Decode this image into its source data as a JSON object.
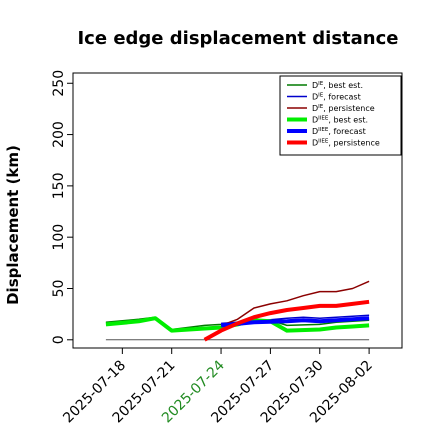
{
  "chart_data": {
    "type": "line",
    "title": "Ice edge displacement distance",
    "ylabel": "Displacement (km)",
    "xlabel": "",
    "ylim": [
      -8,
      260
    ],
    "xlim": [
      "2025-07-15",
      "2025-08-04"
    ],
    "yticks": [
      0,
      50,
      100,
      150,
      200,
      250
    ],
    "xticks": [
      {
        "date": "2025-07-18",
        "label": "2025-07-18",
        "color": "#000000"
      },
      {
        "date": "2025-07-21",
        "label": "2025-07-21",
        "color": "#000000"
      },
      {
        "date": "2025-07-24",
        "label": "2025-07-24",
        "color": "#228B22"
      },
      {
        "date": "2025-07-27",
        "label": "2025-07-27",
        "color": "#000000"
      },
      {
        "date": "2025-07-30",
        "label": "2025-07-30",
        "color": "#000000"
      },
      {
        "date": "2025-08-02",
        "label": "2025-08-02",
        "color": "#000000"
      }
    ],
    "zero_line": true,
    "legend_position": "top-right",
    "series": [
      {
        "name": "DIE, best est.",
        "name_base": "D",
        "name_sup": "IE",
        "name_rest": ", best est.",
        "color": "#007A00",
        "width": 1.5,
        "x": [
          "2025-07-17",
          "2025-07-19",
          "2025-07-20",
          "2025-07-21",
          "2025-07-23",
          "2025-07-24",
          "2025-07-25",
          "2025-07-26",
          "2025-07-27",
          "2025-07-28",
          "2025-07-30",
          "2025-07-31",
          "2025-08-01",
          "2025-08-02"
        ],
        "y": [
          17,
          20,
          22,
          10,
          14,
          15,
          17,
          18,
          19,
          14,
          15,
          17,
          18,
          19
        ]
      },
      {
        "name": "DIE, forecast",
        "name_base": "D",
        "name_sup": "IE",
        "name_rest": ", forecast",
        "color": "#0000CC",
        "width": 1.5,
        "x": [
          "2025-07-24",
          "2025-07-26",
          "2025-07-28",
          "2025-07-29",
          "2025-07-30",
          "2025-07-31",
          "2025-08-02"
        ],
        "y": [
          16,
          18,
          21,
          22,
          21,
          22,
          24
        ]
      },
      {
        "name": "DIE, persistence",
        "name_base": "D",
        "name_sup": "IE",
        "name_rest": ", persistence",
        "color": "#8B0000",
        "width": 1.5,
        "x": [
          "2025-07-24",
          "2025-07-25",
          "2025-07-26",
          "2025-07-27",
          "2025-07-28",
          "2025-07-29",
          "2025-07-30",
          "2025-07-31",
          "2025-08-01",
          "2025-08-02"
        ],
        "y": [
          14,
          20,
          31,
          35,
          38,
          43,
          47,
          47,
          50,
          57
        ]
      },
      {
        "name": "DIIEE, best est.",
        "name_base": "D",
        "name_sup": "IIEE",
        "name_rest": ", best est.",
        "color": "#00EE00",
        "width": 4,
        "x": [
          "2025-07-17",
          "2025-07-19",
          "2025-07-20",
          "2025-07-21",
          "2025-07-23",
          "2025-07-24",
          "2025-07-25",
          "2025-07-26",
          "2025-07-27",
          "2025-07-28",
          "2025-07-30",
          "2025-07-31",
          "2025-08-01",
          "2025-08-02"
        ],
        "y": [
          15,
          18,
          21,
          9,
          11,
          12,
          15,
          19,
          18,
          9,
          10,
          12,
          13,
          14
        ]
      },
      {
        "name": "DIIEE, forecast",
        "name_base": "D",
        "name_sup": "IIEE",
        "name_rest": ", forecast",
        "color": "#0000FF",
        "width": 4,
        "x": [
          "2025-07-24",
          "2025-07-26",
          "2025-07-28",
          "2025-07-29",
          "2025-07-30",
          "2025-07-31",
          "2025-08-02"
        ],
        "y": [
          14,
          17,
          18,
          19,
          18,
          19,
          21
        ]
      },
      {
        "name": "DIIEE, persistence",
        "name_base": "D",
        "name_sup": "IIEE",
        "name_rest": ", persistence",
        "color": "#FF0000",
        "width": 4,
        "x": [
          "2025-07-23",
          "2025-07-24",
          "2025-07-25",
          "2025-07-26",
          "2025-07-27",
          "2025-07-28",
          "2025-07-29",
          "2025-07-30",
          "2025-07-31",
          "2025-08-01",
          "2025-08-02"
        ],
        "y": [
          0,
          9,
          16,
          22,
          26,
          29,
          31,
          33,
          33,
          35,
          37
        ]
      }
    ]
  }
}
